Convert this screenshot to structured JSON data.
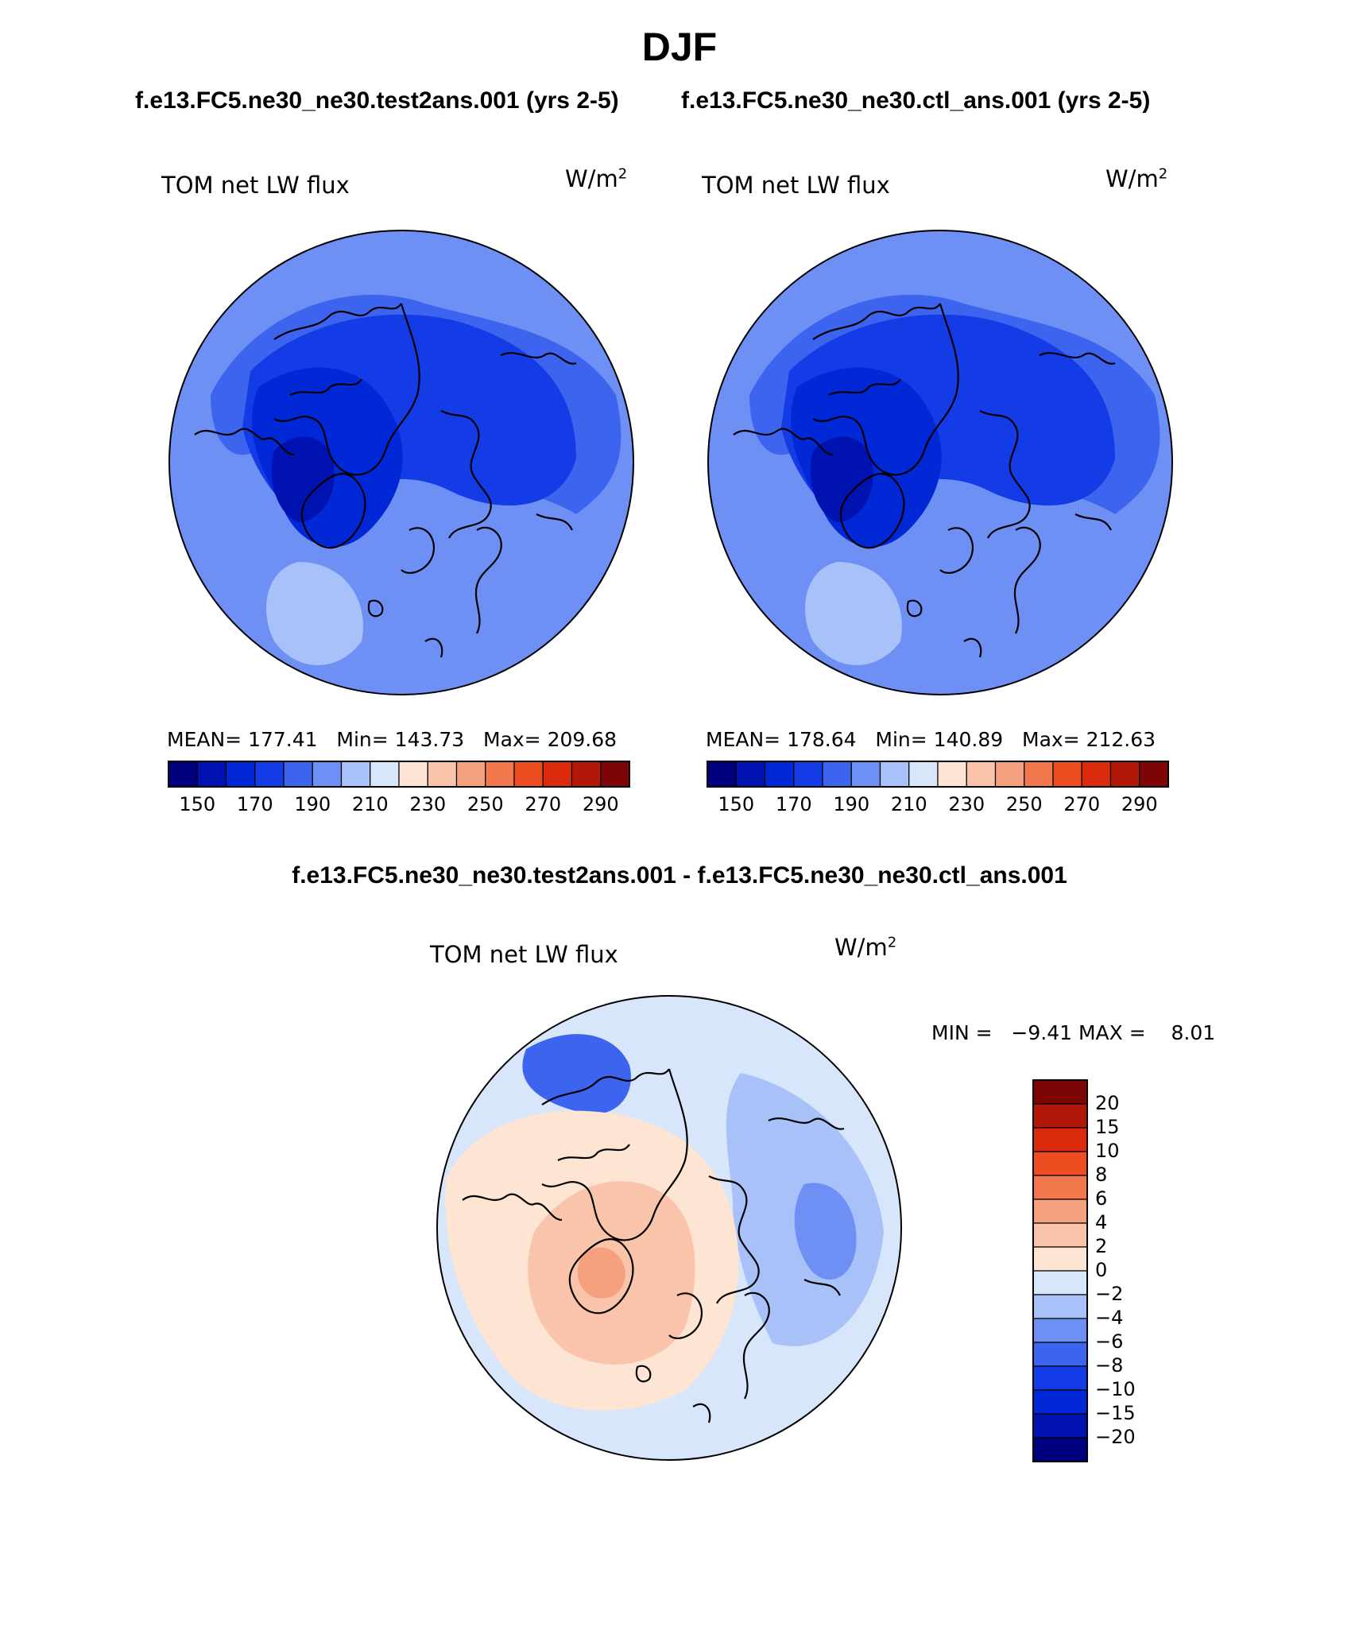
{
  "header": {
    "season": "DJF",
    "left_case": "f.e13.FC5.ne30_ne30.test2ans.001 (yrs 2-5)",
    "right_case": "f.e13.FC5.ne30_ne30.ctl_ans.001 (yrs 2-5)",
    "diff_title": "f.e13.FC5.ne30_ne30.test2ans.001 - f.e13.FC5.ne30_ne30.ctl_ans.001"
  },
  "panels": {
    "left": {
      "variable": "TOM net LW flux",
      "unit_base": "W/m",
      "unit_exp": "2",
      "mean_label": "MEAN=",
      "mean": "177.41",
      "min_label": "Min=",
      "min": "143.73",
      "max_label": "Max=",
      "max": "209.68"
    },
    "right": {
      "variable": "TOM net LW flux",
      "unit_base": "W/m",
      "unit_exp": "2",
      "mean_label": "MEAN=",
      "mean": "178.64",
      "min_label": "Min=",
      "min": "140.89",
      "max_label": "Max=",
      "max": "212.63"
    },
    "diff": {
      "variable": "TOM net LW flux",
      "unit_base": "W/m",
      "unit_exp": "2",
      "min_label": "MIN =",
      "min": "−9.41",
      "max_label": "MAX =",
      "max": "8.01"
    }
  },
  "colorbar_abs": {
    "colors": [
      "#00007f",
      "#0012b0",
      "#0028d7",
      "#143ce6",
      "#3c64ee",
      "#6e8ff4",
      "#a8c1f8",
      "#d7e6fb",
      "#fde4d3",
      "#f9c4aa",
      "#f5a07e",
      "#f3774d",
      "#ee4d22",
      "#dc2a0c",
      "#b21808",
      "#7d0505"
    ],
    "tick_labels": [
      "150",
      "170",
      "190",
      "210",
      "230",
      "250",
      "270",
      "290"
    ]
  },
  "colorbar_diff": {
    "colors": [
      "#7d0505",
      "#b21808",
      "#dc2a0c",
      "#ee4d22",
      "#f3774d",
      "#f5a07e",
      "#f9c4aa",
      "#fde4d3",
      "#d7e6fb",
      "#a8c1f8",
      "#6e8ff4",
      "#3c64ee",
      "#143ce6",
      "#0028d7",
      "#0012b0",
      "#00007f"
    ],
    "tick_labels": [
      "20",
      "15",
      "10",
      "8",
      "6",
      "4",
      "2",
      "0",
      "−2",
      "−4",
      "−6",
      "−8",
      "−10",
      "−15",
      "−20"
    ]
  },
  "map_fields": {
    "left": {
      "background": "#6e8ff4",
      "regions": [
        {
          "color": "#3c64ee",
          "shape": "north-pacific-band"
        },
        {
          "color": "#143ce6",
          "shape": "arctic-core"
        },
        {
          "color": "#0028d7",
          "shape": "canada-greenland"
        },
        {
          "color": "#0012b0",
          "shape": "greenland-center"
        },
        {
          "color": "#a8c1f8",
          "shape": "north-atlantic"
        }
      ]
    },
    "right": {
      "background": "#6e8ff4",
      "regions": [
        {
          "color": "#3c64ee",
          "shape": "north-pacific-band"
        },
        {
          "color": "#143ce6",
          "shape": "arctic-core"
        },
        {
          "color": "#0028d7",
          "shape": "canada-greenland"
        },
        {
          "color": "#0012b0",
          "shape": "greenland-center"
        },
        {
          "color": "#a8c1f8",
          "shape": "north-atlantic"
        }
      ]
    },
    "diff": {
      "background": "#d7e6fb",
      "regions": [
        {
          "color": "#a8c1f8",
          "shape": "east-siberia"
        },
        {
          "color": "#6e8ff4",
          "shape": "siberia-core"
        },
        {
          "color": "#3c64ee",
          "shape": "bering-blob"
        },
        {
          "color": "#fde4d3",
          "shape": "america-arctic"
        },
        {
          "color": "#f9c4aa",
          "shape": "greenland-arctic-warm"
        },
        {
          "color": "#f5a07e",
          "shape": "warm-spots"
        }
      ]
    }
  }
}
